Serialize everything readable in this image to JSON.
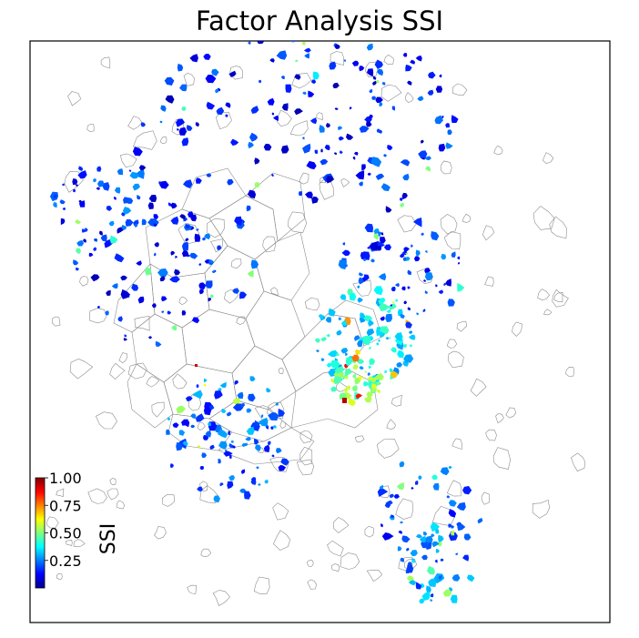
{
  "title": "Factor Analysis SSI",
  "colorbar": {
    "label": "SSI",
    "ticks": [
      "1.00",
      "0.75",
      "0.50",
      "0.25"
    ],
    "tick_values": [
      1.0,
      0.75,
      0.5,
      0.25
    ],
    "range": [
      0.0,
      1.0
    ],
    "colormap": "jet",
    "colors": [
      "#00008f",
      "#0000ff",
      "#00ffff",
      "#ffff00",
      "#ff0000",
      "#800000"
    ]
  },
  "map": {
    "frame_color": "#000000",
    "boundary_color": "#8c8c8c",
    "background": "#ffffff"
  }
}
